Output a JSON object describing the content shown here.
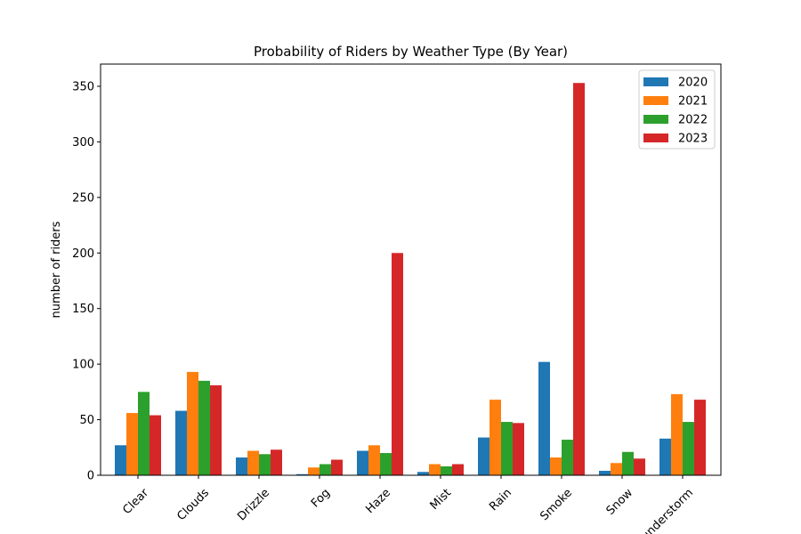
{
  "chart_data": {
    "type": "bar",
    "title": "Probability of Riders by Weather Type (By Year)",
    "xlabel": "",
    "ylabel": "number of riders",
    "categories": [
      "Clear",
      "Clouds",
      "Drizzle",
      "Fog",
      "Haze",
      "Mist",
      "Rain",
      "Smoke",
      "Snow",
      "Thunderstorm"
    ],
    "series": [
      {
        "name": "2020",
        "color": "#1f77b4",
        "values": [
          27,
          58,
          16,
          1,
          22,
          3,
          34,
          102,
          4,
          33
        ]
      },
      {
        "name": "2021",
        "color": "#ff7f0e",
        "values": [
          56,
          93,
          22,
          7,
          27,
          10,
          68,
          16,
          11,
          73
        ]
      },
      {
        "name": "2022",
        "color": "#2ca02c",
        "values": [
          75,
          85,
          19,
          10,
          20,
          8,
          48,
          32,
          21,
          48
        ]
      },
      {
        "name": "2023",
        "color": "#d62728",
        "values": [
          54,
          81,
          23,
          14,
          200,
          10,
          47,
          353,
          15,
          68
        ]
      }
    ],
    "ylim": [
      0,
      370
    ],
    "yticks": [
      0,
      50,
      100,
      150,
      200,
      250,
      300,
      350
    ],
    "grid": false,
    "legend_position": "top-right"
  }
}
